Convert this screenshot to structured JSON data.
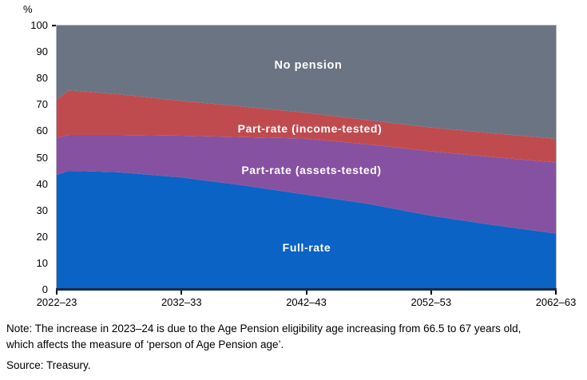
{
  "chart": {
    "y_axis": {
      "unit_label": "%",
      "ticks": [
        0,
        10,
        20,
        30,
        40,
        50,
        60,
        70,
        80,
        90,
        100
      ],
      "min": 0,
      "max": 100
    },
    "x_axis": {
      "ticks": [
        {
          "label": "2022–23",
          "year_offset": 0
        },
        {
          "label": "2032–33",
          "year_offset": 10
        },
        {
          "label": "2042–43",
          "year_offset": 20
        },
        {
          "label": "2052–53",
          "year_offset": 30
        },
        {
          "label": "2062–63",
          "year_offset": 40
        }
      ],
      "span_years": 40
    },
    "colors": {
      "axis_line": "#1B2B4C",
      "tick": "#000000",
      "plot_border": "#B3B7BF"
    }
  },
  "chart_data": {
    "type": "area",
    "stacked": true,
    "ylabel": "%",
    "ylim": [
      0,
      100
    ],
    "grid": false,
    "legend_position": "labels inside areas",
    "x_year_offsets": [
      0,
      1,
      5,
      10,
      15,
      20,
      25,
      30,
      35,
      40
    ],
    "x_fiscal_years": [
      "2022–23",
      "2023–24",
      "2027–28",
      "2032–33",
      "2037–38",
      "2042–43",
      "2047–48",
      "2052–53",
      "2057–58",
      "2062–63"
    ],
    "series": [
      {
        "name": "Full-rate",
        "color": "#0B63C6",
        "values": [
          43.5,
          45.0,
          44.5,
          42.5,
          39.5,
          36.0,
          32.5,
          28.0,
          24.5,
          21.3
        ]
      },
      {
        "name": "Part-rate (assets-tested)",
        "color": "#8751A1",
        "values": [
          14.0,
          13.6,
          14.1,
          15.8,
          18.3,
          21.2,
          22.5,
          24.4,
          25.7,
          26.9
        ]
      },
      {
        "name": "Part-rate (income-tested)",
        "color": "#C04B4F",
        "values": [
          14.5,
          16.9,
          15.4,
          13.2,
          11.5,
          9.8,
          9.2,
          9.0,
          9.0,
          9.0
        ]
      },
      {
        "name": "No pension",
        "color": "#6B7482",
        "values": [
          28.0,
          24.5,
          26.0,
          28.5,
          30.7,
          33.0,
          35.8,
          38.6,
          40.8,
          42.8
        ]
      }
    ]
  },
  "note": {
    "lines": [
      "Note: The increase in 2023–24 is due to the Age Pension eligibility age increasing from 66.5 to 67 years old,",
      "which affects the measure of ‘person of Age Pension age’."
    ],
    "source": "Source: Treasury."
  }
}
